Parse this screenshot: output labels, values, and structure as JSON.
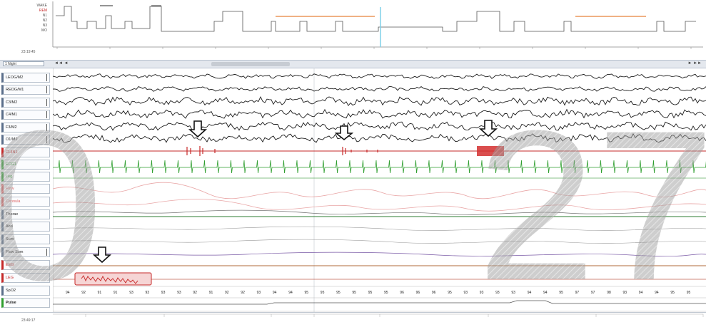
{
  "hypnogram": {
    "stage_labels": [
      "WAKE",
      "REM",
      "N1",
      "N2",
      "N3",
      "MO"
    ],
    "start_time": "23:19:45"
  },
  "toolbar": {
    "epoch_select": "1 Night",
    "nav_left": "◄◄ ◄",
    "nav_right": "► ►►"
  },
  "channels": [
    {
      "label": "LEOG/M2"
    },
    {
      "label": "REOG/M1"
    },
    {
      "label": "C3/M2"
    },
    {
      "label": "C4/M1"
    },
    {
      "label": "F3/M2"
    },
    {
      "label": "O1/M2"
    },
    {
      "label": "CHIN1"
    },
    {
      "label": "ECG1"
    },
    {
      "label": "Leg"
    },
    {
      "label": "Flow"
    },
    {
      "label": "Cannula"
    },
    {
      "label": "Thorax"
    },
    {
      "label": "Abd"
    },
    {
      "label": "Sum"
    },
    {
      "label": "Flow Sum"
    },
    {
      "label": "EEG"
    },
    {
      "label": "LEG"
    },
    {
      "label": "SpO2"
    },
    {
      "label": "Pulse"
    }
  ],
  "spo2_values": [
    "94",
    "92",
    "91",
    "91",
    "93",
    "93",
    "93",
    "93",
    "92",
    "91",
    "92",
    "92",
    "93",
    "94",
    "94",
    "95",
    "95",
    "95",
    "95",
    "95",
    "95",
    "96",
    "96",
    "96",
    "95",
    "93",
    "93",
    "93",
    "93",
    "94",
    "94",
    "95",
    "97",
    "97",
    "98",
    "93",
    "94",
    "94",
    "95",
    "95"
  ],
  "footer": {
    "end_time": "23:49:17"
  },
  "watermark": {
    "epoch_left": "0",
    "epoch_right": "27"
  },
  "colors": {
    "eeg": "#1b1b1b",
    "chin_emg": "#c62828",
    "ecg": "#2e9e2e",
    "hyp_rem": "#e8823a",
    "cursor": "#7fd0e8"
  },
  "icons": {
    "event_marker": "arrow-down-icon"
  }
}
